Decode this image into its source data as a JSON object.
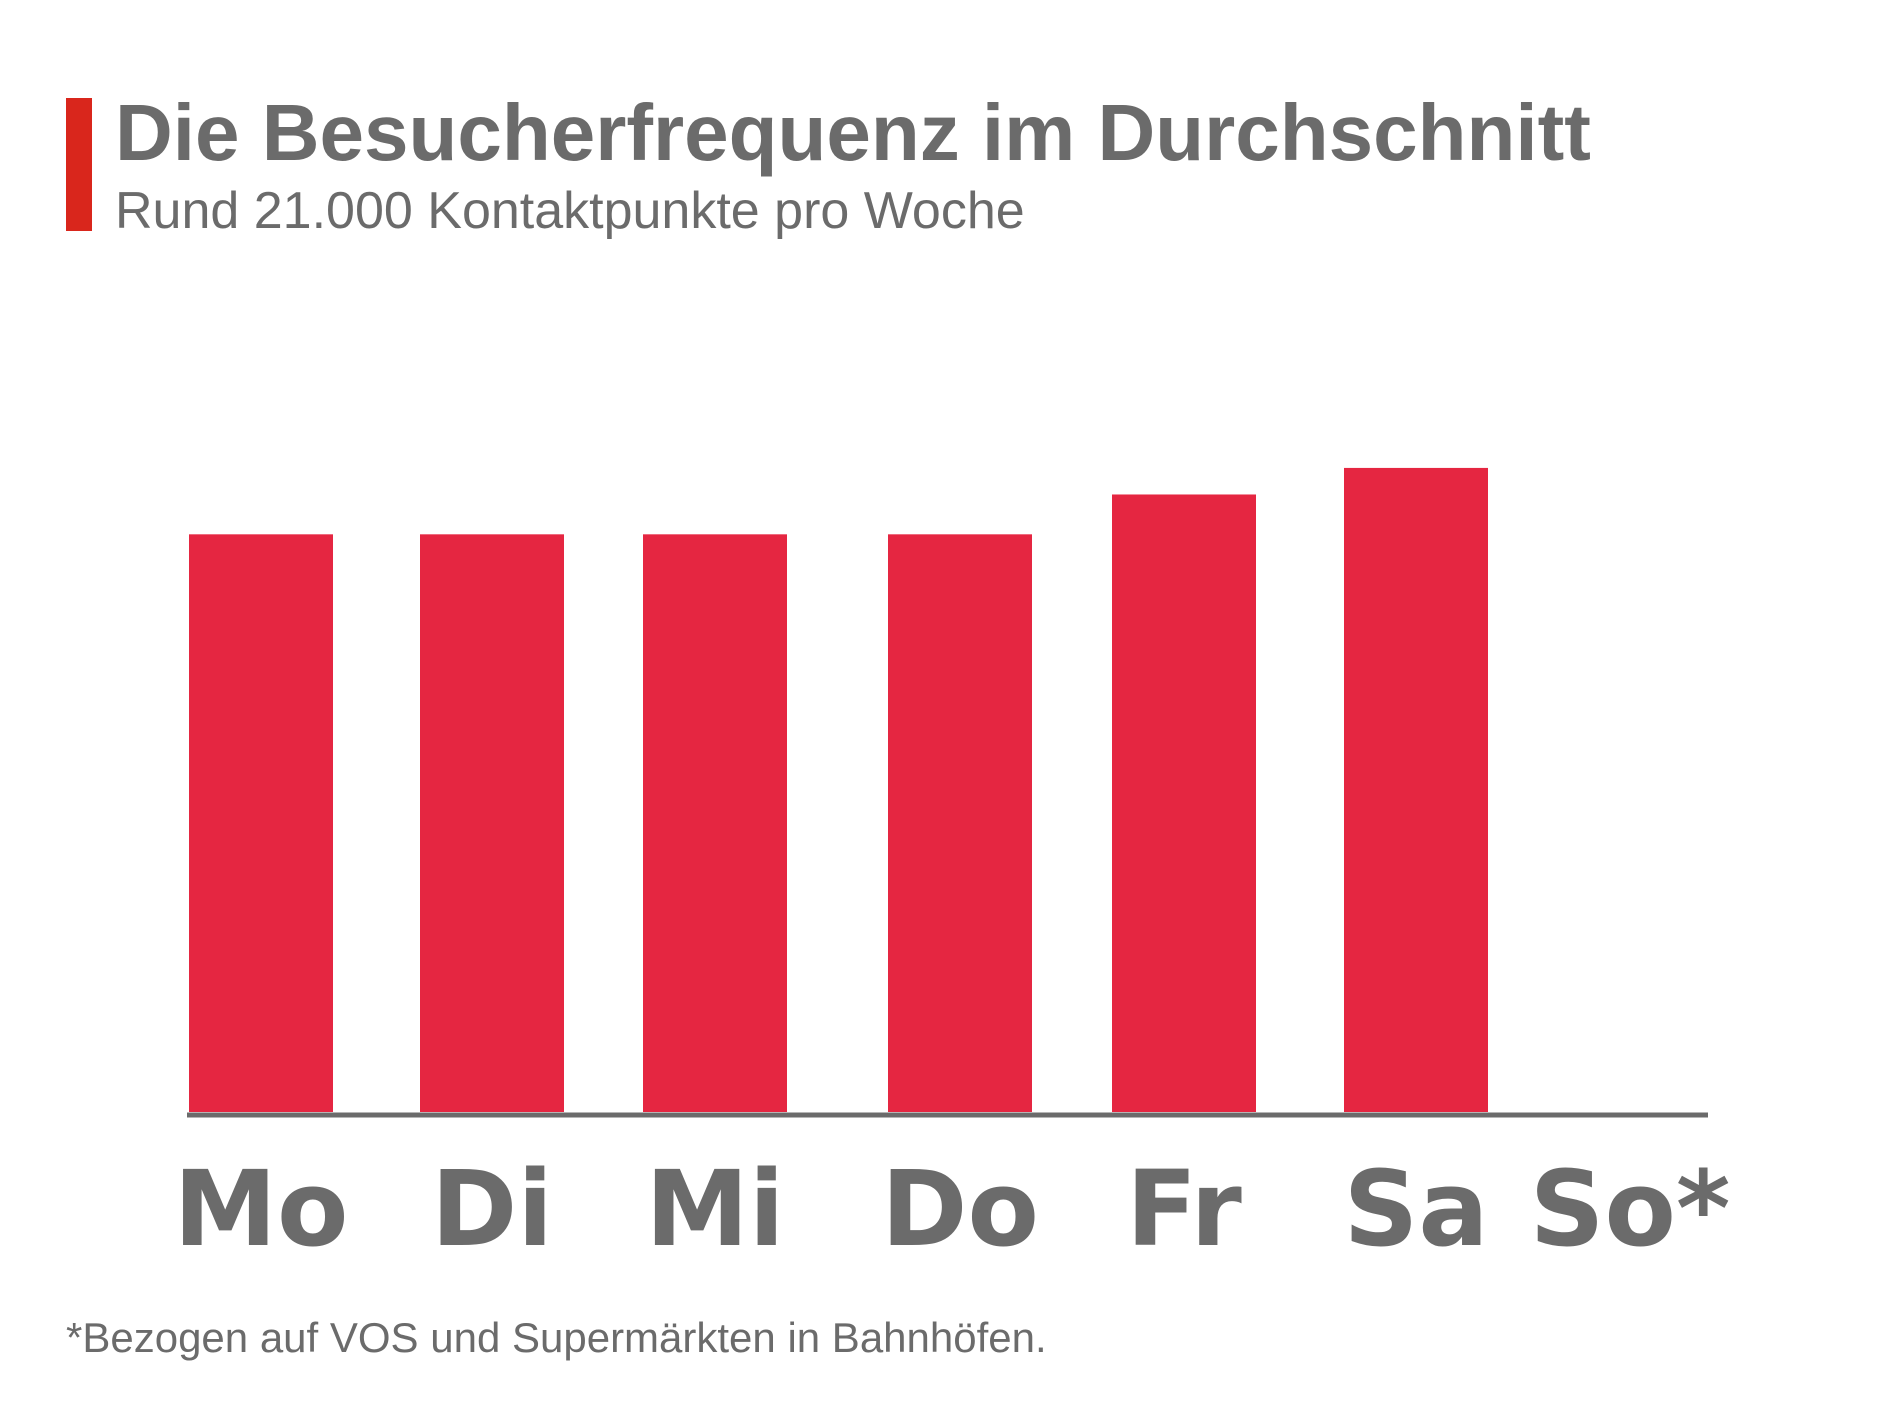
{
  "title": "Die Besucherfrequenz im Durchschnitt",
  "subtitle": "Rund 21.000 Kontaktpunkte pro Woche",
  "footnote": "*Bezogen auf VOS und Supermärkten in Bahnhöfen.",
  "colors": {
    "bar": "#e52641",
    "accent": "#d9261c",
    "text": "#6b6b6b",
    "axis": "#6b6b6b"
  },
  "chart_data": {
    "type": "bar",
    "categories": [
      "Mo",
      "Di",
      "Mi",
      "Do",
      "Fr",
      "Sa",
      "So*"
    ],
    "values": [
      0.87,
      0.87,
      0.87,
      0.87,
      0.93,
      0.97,
      0
    ],
    "ylim": [
      0,
      1
    ],
    "title": "Die Besucherfrequenz im Durchschnitt",
    "subtitle": "Rund 21.000 Kontaktpunkte pro Woche",
    "xlabel": "",
    "ylabel": "",
    "grid": false,
    "legend": "none"
  }
}
